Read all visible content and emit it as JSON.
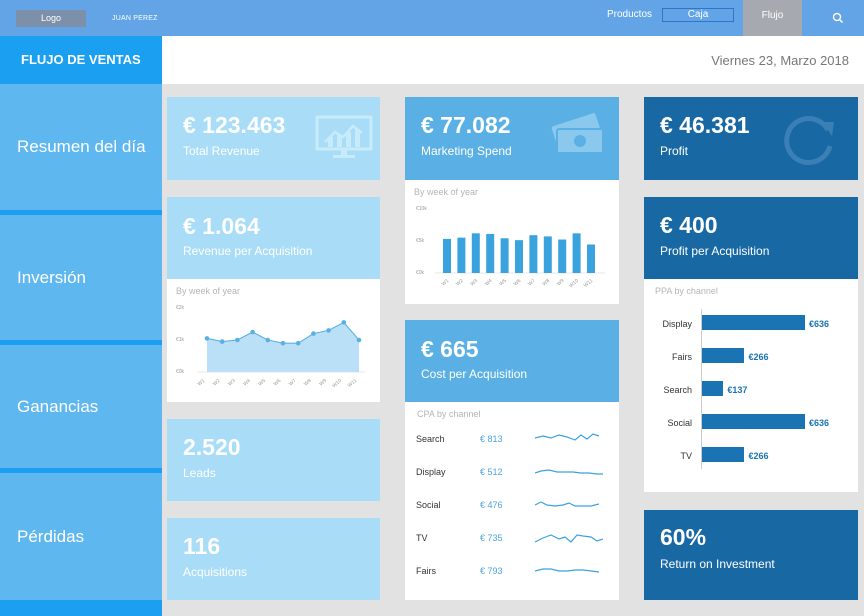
{
  "topbar": {
    "logo": "Logo",
    "user": "JUAN PEREZ",
    "nav": [
      "Productos",
      "Caja",
      "Flujo"
    ],
    "search_icon": "search-icon"
  },
  "sidebar": {
    "title": "FLUJO DE VENTAS",
    "items": [
      "Resumen del día",
      "Inversión",
      "Ganancias",
      "Pérdidas"
    ]
  },
  "header": {
    "date": "Viernes 23, Marzo 2018"
  },
  "kpis": {
    "total_revenue": {
      "value": "€ 123.463",
      "label": "Total Revenue",
      "icon": "monitor-chart-icon"
    },
    "revenue_per_acq": {
      "value": "€ 1.064",
      "label": "Revenue per Acquisition"
    },
    "leads": {
      "value": "2.520",
      "label": "Leads"
    },
    "acquisitions": {
      "value": "116",
      "label": "Acquisitions"
    },
    "marketing_spend": {
      "value": "€ 77.082",
      "label": "Marketing Spend",
      "icon": "money-icon"
    },
    "cost_per_acq": {
      "value": "€ 665",
      "label": "Cost per Acquisition"
    },
    "profit": {
      "value": "€ 46.381",
      "label": "Profit",
      "icon": "refresh-icon"
    },
    "profit_per_acq": {
      "value": "€ 400",
      "label": "Profit per Acquisition"
    },
    "roi": {
      "value": "60%",
      "label": "Return on Investment"
    }
  },
  "revenue_chart": {
    "subtitle": "By week of year",
    "yticks": [
      "€2k",
      "€1k",
      "€0k"
    ]
  },
  "spend_chart": {
    "subtitle": "By week of year",
    "yticks": [
      "€10k",
      "€5k",
      "€0k"
    ]
  },
  "cpa_by_channel": {
    "subtitle": "CPA by channel",
    "rows": [
      {
        "name": "Search",
        "value": "€ 813"
      },
      {
        "name": "Display",
        "value": "€ 512"
      },
      {
        "name": "Social",
        "value": "€ 476"
      },
      {
        "name": "TV",
        "value": "€ 735"
      },
      {
        "name": "Fairs",
        "value": "€ 793"
      }
    ]
  },
  "ppa_by_channel": {
    "subtitle": "PPA by channel",
    "rows": [
      {
        "name": "Display",
        "value": "€636"
      },
      {
        "name": "Fairs",
        "value": "€266"
      },
      {
        "name": "Search",
        "value": "€137"
      },
      {
        "name": "Social",
        "value": "€636"
      },
      {
        "name": "TV",
        "value": "€266"
      }
    ]
  },
  "chart_data": [
    {
      "type": "area",
      "title": "By week of year",
      "x": [
        "W1",
        "W2",
        "W3",
        "W4",
        "W5",
        "W6",
        "W7",
        "W8",
        "W9",
        "W10",
        "W11"
      ],
      "values": [
        1.05,
        0.95,
        1.0,
        1.25,
        1.0,
        0.9,
        0.9,
        1.2,
        1.3,
        1.55,
        1.0
      ],
      "ylim": [
        0,
        2
      ],
      "yticks": [
        "€2k",
        "€1k",
        "€0k"
      ],
      "color": "#b9e0f7"
    },
    {
      "type": "bar",
      "title": "By week of year",
      "categories": [
        "W1",
        "W2",
        "W3",
        "W4",
        "W5",
        "W6",
        "W7",
        "W8",
        "W9",
        "W10",
        "W11"
      ],
      "values": [
        5.5,
        5.7,
        6.4,
        6.3,
        5.6,
        5.3,
        6.1,
        5.9,
        5.4,
        6.4,
        4.6
      ],
      "ylim": [
        0,
        10
      ],
      "yticks": [
        "€10k",
        "€5k",
        "€0k"
      ],
      "color": "#3aa3de"
    },
    {
      "type": "bar",
      "title": "PPA by channel",
      "categories": [
        "Display",
        "Fairs",
        "Search",
        "Social",
        "TV"
      ],
      "values": [
        636,
        266,
        137,
        636,
        266
      ],
      "color": "#1a73b3"
    }
  ]
}
